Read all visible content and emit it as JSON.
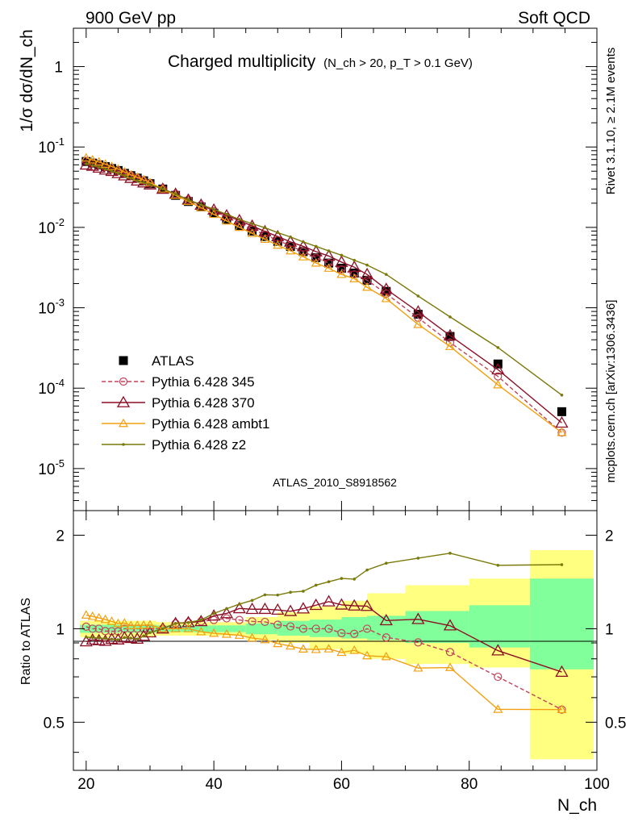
{
  "header": {
    "left": "900 GeV pp",
    "right": "Soft QCD"
  },
  "side_texts": {
    "rivet": "Rivet 3.1.10, ≥ 2.1M events",
    "mcplots": "mcplots.cern.ch [arXiv:1306.3436]"
  },
  "chart_data": {
    "type": "line",
    "title": "Charged multiplicity",
    "title_cut": "(N_ch > 20, p_T > 0.1 GeV)",
    "watermark": "ATLAS_2010_S8918562",
    "xlabel": "N_ch",
    "ylabel_main": "1/σ dσ/dN_ch",
    "ylabel_ratio": "Ratio to ATLAS",
    "xlim": [
      18,
      100
    ],
    "ylim_main": [
      3e-06,
      3
    ],
    "ylim_ratio": [
      0.35,
      2.4
    ],
    "yscale_main": "log",
    "yscale_ratio": "log",
    "x_ticks": [
      "20",
      "40",
      "60",
      "80",
      "100"
    ],
    "y_ticks_main": [
      "1",
      "10^-1",
      "10^-2",
      "10^-3",
      "10^-4",
      "10^-5"
    ],
    "y_ticks_ratio": [
      "0.5",
      "1",
      "2"
    ],
    "legend_position": "lower-left",
    "ratio_bands": {
      "green": [
        {
          "x": [
            19,
            31
          ],
          "lo": 0.97,
          "hi": 1.03
        },
        {
          "x": [
            31,
            45
          ],
          "lo": 0.975,
          "hi": 1.025
        },
        {
          "x": [
            45,
            50
          ],
          "lo": 0.96,
          "hi": 1.04
        },
        {
          "x": [
            50,
            55
          ],
          "lo": 0.95,
          "hi": 1.06
        },
        {
          "x": [
            55,
            60
          ],
          "lo": 0.94,
          "hi": 1.07
        },
        {
          "x": [
            60,
            64
          ],
          "lo": 0.93,
          "hi": 1.09
        },
        {
          "x": [
            64,
            70
          ],
          "lo": 0.92,
          "hi": 1.1
        },
        {
          "x": [
            70,
            80
          ],
          "lo": 0.9,
          "hi": 1.14
        },
        {
          "x": [
            80,
            89.5
          ],
          "lo": 0.87,
          "hi": 1.19
        },
        {
          "x": [
            89.5,
            99.5
          ],
          "lo": 0.74,
          "hi": 1.45
        }
      ],
      "yellow": [
        {
          "x": [
            19,
            31
          ],
          "lo": 0.94,
          "hi": 1.06
        },
        {
          "x": [
            31,
            45
          ],
          "lo": 0.95,
          "hi": 1.05
        },
        {
          "x": [
            45,
            50
          ],
          "lo": 0.92,
          "hi": 1.09
        },
        {
          "x": [
            50,
            55
          ],
          "lo": 0.9,
          "hi": 1.13
        },
        {
          "x": [
            55,
            60
          ],
          "lo": 0.86,
          "hi": 1.18
        },
        {
          "x": [
            60,
            64
          ],
          "lo": 0.83,
          "hi": 1.23
        },
        {
          "x": [
            64,
            70
          ],
          "lo": 0.8,
          "hi": 1.3
        },
        {
          "x": [
            70,
            80
          ],
          "lo": 0.77,
          "hi": 1.38
        },
        {
          "x": [
            80,
            89.5
          ],
          "lo": 0.75,
          "hi": 1.45
        },
        {
          "x": [
            89.5,
            99.5
          ],
          "lo": 0.38,
          "hi": 1.79
        }
      ]
    },
    "series": [
      {
        "name": "ATLAS",
        "color": "#000000",
        "marker": "square",
        "x": [
          20,
          21,
          22,
          23,
          24,
          25,
          26,
          27,
          28,
          29,
          30,
          32,
          34,
          36,
          38,
          40,
          42,
          44,
          46,
          48,
          50,
          52,
          54,
          56,
          58,
          60,
          62,
          64,
          67,
          72,
          77,
          84.5,
          94.5
        ],
        "y": [
          0.066,
          0.063,
          0.06,
          0.057,
          0.054,
          0.051,
          0.047,
          0.044,
          0.041,
          0.038,
          0.035,
          0.03,
          0.025,
          0.021,
          0.018,
          0.015,
          0.0125,
          0.0105,
          0.009,
          0.0077,
          0.0067,
          0.0058,
          0.005,
          0.0042,
          0.0036,
          0.0031,
          0.0027,
          0.0022,
          0.0016,
          0.00083,
          0.00044,
          0.0002,
          5.1e-05
        ]
      },
      {
        "name": "Pythia 6.428 345",
        "color": "#c0445a",
        "marker": "circle",
        "x": [
          20,
          21,
          22,
          23,
          24,
          25,
          26,
          27,
          28,
          29,
          30,
          32,
          34,
          36,
          38,
          40,
          42,
          44,
          46,
          48,
          50,
          52,
          54,
          56,
          58,
          60,
          62,
          64,
          67,
          72,
          77,
          84.5,
          94.5
        ],
        "y": [
          0.067,
          0.063,
          0.06,
          0.056,
          0.053,
          0.05,
          0.047,
          0.044,
          0.041,
          0.038,
          0.035,
          0.03,
          0.026,
          0.022,
          0.019,
          0.016,
          0.0135,
          0.0112,
          0.0095,
          0.0081,
          0.0069,
          0.0059,
          0.005,
          0.0042,
          0.0036,
          0.003,
          0.0026,
          0.0022,
          0.0015,
          0.00075,
          0.00037,
          0.00014,
          2.8e-05
        ]
      },
      {
        "name": "Pythia 6.428 370",
        "color": "#8c0f25",
        "marker": "triangle",
        "x": [
          20,
          21,
          22,
          23,
          24,
          25,
          26,
          27,
          28,
          29,
          30,
          32,
          34,
          36,
          38,
          40,
          42,
          44,
          46,
          48,
          50,
          52,
          54,
          56,
          58,
          60,
          62,
          64,
          67,
          72,
          77,
          84.5,
          94.5
        ],
        "y": [
          0.06,
          0.058,
          0.055,
          0.052,
          0.05,
          0.047,
          0.044,
          0.041,
          0.038,
          0.036,
          0.034,
          0.03,
          0.026,
          0.022,
          0.019,
          0.0165,
          0.014,
          0.0122,
          0.0104,
          0.0089,
          0.0077,
          0.0066,
          0.0058,
          0.005,
          0.0044,
          0.0037,
          0.0032,
          0.0026,
          0.0017,
          0.00089,
          0.00045,
          0.00017,
          3.7e-05
        ]
      },
      {
        "name": "Pythia 6.428 ambt1",
        "color": "#f0a010",
        "marker": "triangle-small",
        "x": [
          20,
          21,
          22,
          23,
          24,
          25,
          26,
          27,
          28,
          29,
          30,
          32,
          34,
          36,
          38,
          40,
          42,
          44,
          46,
          48,
          50,
          52,
          54,
          56,
          58,
          60,
          62,
          64,
          67,
          72,
          77,
          84.5,
          94.5
        ],
        "y": [
          0.073,
          0.069,
          0.065,
          0.061,
          0.057,
          0.053,
          0.049,
          0.045,
          0.042,
          0.039,
          0.036,
          0.03,
          0.025,
          0.021,
          0.0176,
          0.0145,
          0.012,
          0.01,
          0.0084,
          0.0071,
          0.006,
          0.0051,
          0.0043,
          0.0036,
          0.0031,
          0.0026,
          0.0023,
          0.0018,
          0.0013,
          0.00062,
          0.00033,
          0.00011,
          2.8e-05
        ]
      },
      {
        "name": "Pythia 6.428 z2",
        "color": "#7a7a0a",
        "marker": "dot",
        "x": [
          20,
          21,
          22,
          23,
          24,
          25,
          26,
          27,
          28,
          29,
          30,
          32,
          34,
          36,
          38,
          40,
          42,
          44,
          46,
          48,
          50,
          52,
          54,
          56,
          58,
          60,
          62,
          64,
          67,
          72,
          77,
          84.5,
          94.5
        ],
        "y": [
          0.062,
          0.059,
          0.056,
          0.053,
          0.05,
          0.047,
          0.044,
          0.041,
          0.038,
          0.036,
          0.034,
          0.03,
          0.026,
          0.022,
          0.0192,
          0.0168,
          0.0145,
          0.0126,
          0.0111,
          0.0099,
          0.0086,
          0.0076,
          0.0066,
          0.0058,
          0.0051,
          0.0045,
          0.0039,
          0.0034,
          0.0026,
          0.0014,
          0.00077,
          0.00032,
          8.2e-05
        ]
      }
    ]
  }
}
